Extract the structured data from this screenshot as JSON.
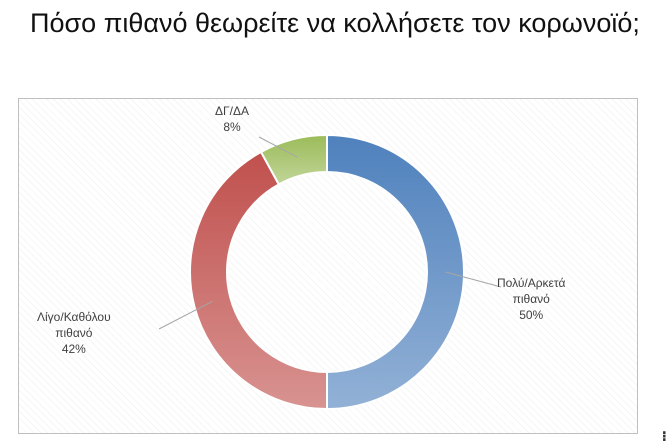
{
  "page": {
    "title": "Πόσο πιθανό θεωρείτε να κολλήσετε τον κορωνοϊό;"
  },
  "chart_data": {
    "type": "pie",
    "style": "donut",
    "title": "",
    "legend": "none",
    "slices": [
      {
        "label_lines": [
          "Πολύ/Αρκετά",
          "πιθανό"
        ],
        "value": 50,
        "value_label": "50%",
        "color": "#4f81bd"
      },
      {
        "label_lines": [
          "Λίγο/Καθόλου",
          "πιθανό"
        ],
        "value": 42,
        "value_label": "42%",
        "color": "#c0504d"
      },
      {
        "label_lines": [
          "ΔΓ/ΔΑ"
        ],
        "value": 8,
        "value_label": "8%",
        "color": "#9bbb59"
      }
    ]
  }
}
